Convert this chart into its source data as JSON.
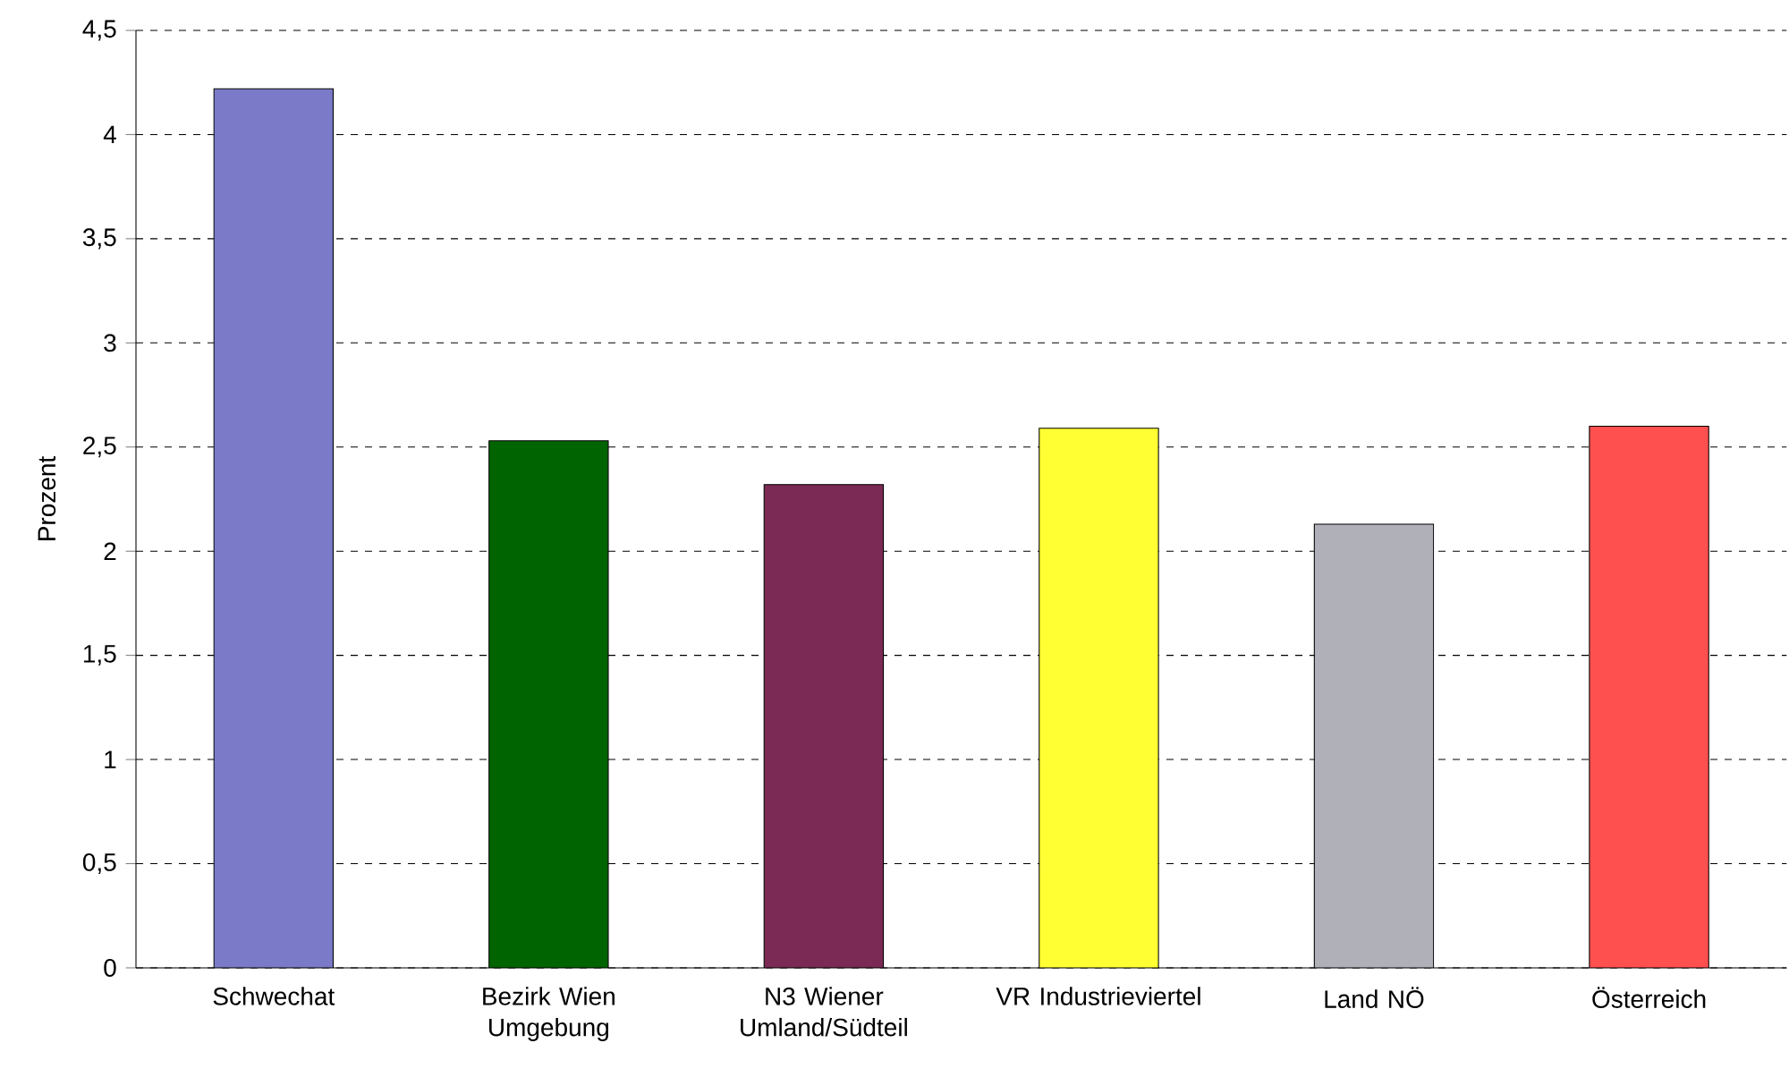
{
  "chart_data": {
    "type": "bar",
    "ylabel": "Prozent",
    "categories": [
      "Schwechat",
      "Bezirk Wien Umgebung",
      "N3 Wiener Umland/Südteil",
      "VR Industrieviertel",
      "Land NÖ",
      "Österreich"
    ],
    "values": [
      4.22,
      2.53,
      2.32,
      2.59,
      2.13,
      2.6
    ],
    "colors": [
      "#7a7ac8",
      "#006400",
      "#7a2a55",
      "#ffff33",
      "#b0b0b8",
      "#ff5050"
    ],
    "ylim": [
      0,
      4.5
    ],
    "yticks": [
      {
        "value": 0,
        "label": "0"
      },
      {
        "value": 0.5,
        "label": "0,5"
      },
      {
        "value": 1,
        "label": "1"
      },
      {
        "value": 1.5,
        "label": "1,5"
      },
      {
        "value": 2,
        "label": "2"
      },
      {
        "value": 2.5,
        "label": "2,5"
      },
      {
        "value": 3,
        "label": "3"
      },
      {
        "value": 3.5,
        "label": "3,5"
      },
      {
        "value": 4,
        "label": "4"
      },
      {
        "value": 4.5,
        "label": "4,5"
      }
    ],
    "grid": "y"
  }
}
